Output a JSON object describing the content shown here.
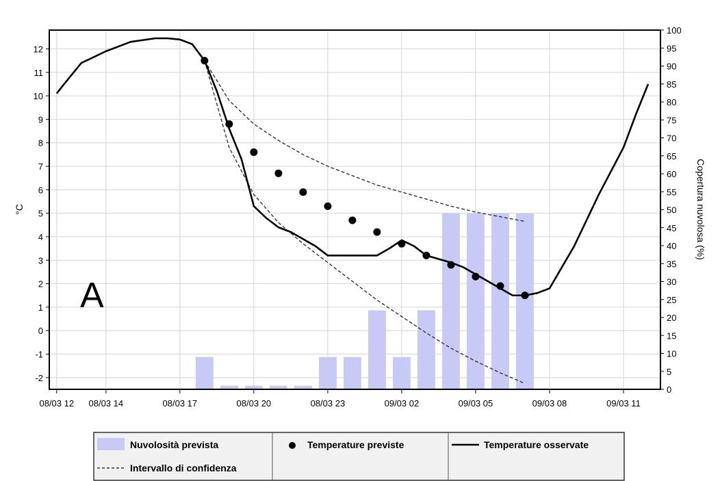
{
  "chart_data": {
    "type": "bar+line",
    "panel_label": "A",
    "ylabel_left": "°C",
    "ylabel_right": "Copertura nuvolosa (%)",
    "ylim_left": [
      -2.5,
      12.8
    ],
    "ylim_right": [
      0,
      100
    ],
    "yticks_left": [
      12,
      11,
      10,
      9,
      8,
      7,
      6,
      5,
      4,
      3,
      2,
      1,
      0,
      -1,
      -2
    ],
    "yticks_right": [
      100,
      95,
      90,
      85,
      80,
      75,
      70,
      65,
      60,
      55,
      50,
      45,
      40,
      35,
      30,
      25,
      20,
      15,
      10,
      5,
      0
    ],
    "x_tick_labels": [
      "08/03 12",
      "08/03 14",
      "08/03 17",
      "08/03 20",
      "08/03 23",
      "09/03 02",
      "09/03 05",
      "09/03 08",
      "09/03 11"
    ],
    "x_tick_hours": [
      0,
      2,
      5,
      8,
      11,
      14,
      17,
      20,
      23
    ],
    "xlim_hours": [
      -0.3,
      24.5
    ],
    "grid": true,
    "legend_position": "bottom",
    "series": [
      {
        "name": "Nuvolosità prevista",
        "kind": "bar",
        "axis": "right",
        "color": "#c9c9f5",
        "x_hours": [
          6,
          7,
          8,
          9,
          10,
          11,
          12,
          13,
          14,
          15,
          16,
          17,
          18,
          19
        ],
        "values": [
          9,
          1,
          1,
          1,
          1,
          9,
          9,
          22,
          9,
          22,
          49,
          49,
          49,
          49
        ]
      },
      {
        "name": "Temperature previste",
        "kind": "scatter",
        "axis": "left",
        "color": "#000000",
        "x_hours": [
          6,
          7,
          8,
          9,
          10,
          11,
          12,
          13,
          14,
          15,
          16,
          17,
          18,
          19
        ],
        "values": [
          11.5,
          8.8,
          7.6,
          6.7,
          5.9,
          5.3,
          4.7,
          4.2,
          3.7,
          3.2,
          2.8,
          2.3,
          1.9,
          1.5
        ]
      },
      {
        "name": "Temperature osservate",
        "kind": "line",
        "axis": "left",
        "color": "#000000",
        "x_hours": [
          0,
          0.3,
          1,
          2,
          3,
          4,
          4.5,
          5,
          5.5,
          6,
          6.5,
          7,
          7.5,
          8,
          8.5,
          9,
          9.5,
          10,
          10.5,
          11,
          12,
          13,
          13.5,
          14,
          14.5,
          15,
          16,
          16.5,
          17,
          17.5,
          18,
          18.5,
          19,
          19.5,
          20,
          21,
          22,
          22.5,
          23,
          23.5,
          24
        ],
        "values": [
          10.1,
          10.5,
          11.4,
          11.9,
          12.3,
          12.45,
          12.45,
          12.4,
          12.2,
          11.5,
          10.2,
          8.6,
          7.3,
          5.3,
          4.8,
          4.4,
          4.2,
          3.9,
          3.6,
          3.2,
          3.2,
          3.2,
          3.5,
          3.85,
          3.6,
          3.2,
          2.9,
          2.7,
          2.4,
          2.1,
          1.8,
          1.5,
          1.5,
          1.6,
          1.8,
          3.6,
          5.8,
          6.8,
          7.8,
          9.2,
          10.5
        ]
      },
      {
        "name": "Intervallo di confidenza",
        "kind": "dashed-band",
        "axis": "left",
        "color": "#333333",
        "upper": {
          "x_hours": [
            6,
            7,
            8,
            9,
            10,
            11,
            12,
            13,
            14,
            15,
            16,
            17,
            18,
            19
          ],
          "values": [
            11.5,
            9.8,
            8.8,
            8.1,
            7.5,
            7.0,
            6.6,
            6.2,
            5.9,
            5.6,
            5.3,
            5.05,
            4.85,
            4.65
          ]
        },
        "lower": {
          "x_hours": [
            6,
            7,
            8,
            9,
            10,
            11,
            12,
            13,
            14,
            15,
            16,
            17,
            18,
            19
          ],
          "values": [
            11.5,
            7.8,
            5.8,
            4.6,
            3.7,
            2.9,
            2.1,
            1.3,
            0.6,
            -0.1,
            -0.75,
            -1.3,
            -1.8,
            -2.25
          ]
        }
      }
    ]
  },
  "legend": {
    "items": [
      {
        "label": "Nuvolosità prevista"
      },
      {
        "label": "Temperature previste"
      },
      {
        "label": "Temperature osservate"
      },
      {
        "label": "Intervallo di confidenza"
      }
    ]
  }
}
